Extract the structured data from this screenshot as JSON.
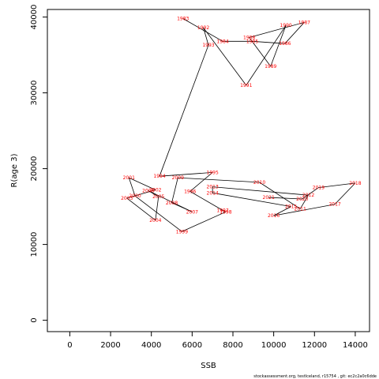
{
  "chart_data": {
    "type": "line",
    "title": "",
    "xlabel": "SSB",
    "ylabel": "R(age 3)",
    "xlim": [
      -1100,
      14700
    ],
    "ylim": [
      -1500,
      41000
    ],
    "xticks": [
      "0",
      "2000",
      "4000",
      "6000",
      "8000",
      "10000",
      "12000",
      "14000"
    ],
    "yticks": [
      "0",
      "10000",
      "20000",
      "30000",
      "40000"
    ],
    "grid": false,
    "line_color": "#000000",
    "label_color": "#ff0000",
    "footnote": "stockassessment.org, testIceland, r15754 ,  git: ec2c2a0c6dde",
    "series": [
      {
        "points": [
          {
            "label": "1983",
            "x": 5550,
            "y": 39800
          },
          {
            "label": "1984",
            "x": 7500,
            "y": 36800
          },
          {
            "label": "1985",
            "x": 8950,
            "y": 36800
          },
          {
            "label": "1986",
            "x": 10550,
            "y": 36500
          },
          {
            "label": "1987",
            "x": 11500,
            "y": 39300
          },
          {
            "label": "1988",
            "x": 8800,
            "y": 37300
          },
          {
            "label": "1989",
            "x": 9850,
            "y": 33500
          },
          {
            "label": "1990",
            "x": 10600,
            "y": 38900
          },
          {
            "label": "1991",
            "x": 8650,
            "y": 31000
          },
          {
            "label": "1992",
            "x": 6550,
            "y": 38600
          },
          {
            "label": "1993",
            "x": 6800,
            "y": 36300
          },
          {
            "label": "1994",
            "x": 4400,
            "y": 19000
          },
          {
            "label": "1995",
            "x": 7000,
            "y": 19500
          },
          {
            "label": "1996",
            "x": 5900,
            "y": 17000
          },
          {
            "label": "1997",
            "x": 7500,
            "y": 14500
          },
          {
            "label": "1998",
            "x": 7650,
            "y": 14300
          },
          {
            "label": "1999",
            "x": 5500,
            "y": 11700
          },
          {
            "label": "2000",
            "x": 3200,
            "y": 16400
          },
          {
            "label": "2001",
            "x": 2900,
            "y": 18800
          },
          {
            "label": "2002",
            "x": 4200,
            "y": 17200
          },
          {
            "label": "2003",
            "x": 2800,
            "y": 16100
          },
          {
            "label": "2004",
            "x": 4200,
            "y": 13200
          },
          {
            "label": "2005",
            "x": 4350,
            "y": 16300
          },
          {
            "label": "2006",
            "x": 3850,
            "y": 17100
          },
          {
            "label": "2007",
            "x": 6000,
            "y": 14300
          },
          {
            "label": "2008",
            "x": 5000,
            "y": 15500
          },
          {
            "label": "2009",
            "x": 5300,
            "y": 18800
          },
          {
            "label": "2010",
            "x": 9300,
            "y": 18200
          },
          {
            "label": "2011",
            "x": 11300,
            "y": 14700
          },
          {
            "label": "2012",
            "x": 11700,
            "y": 16500
          },
          {
            "label": "2013",
            "x": 7000,
            "y": 17600
          },
          {
            "label": "2014",
            "x": 7000,
            "y": 16800
          },
          {
            "label": "2015",
            "x": 10850,
            "y": 15000
          },
          {
            "label": "2016",
            "x": 10000,
            "y": 13800
          },
          {
            "label": "2017",
            "x": 13000,
            "y": 15300
          },
          {
            "label": "2018",
            "x": 14000,
            "y": 18100
          },
          {
            "label": "2019",
            "x": 12200,
            "y": 17500
          },
          {
            "label": "2020",
            "x": 11400,
            "y": 16000
          },
          {
            "label": "2021",
            "x": 9750,
            "y": 16200
          }
        ]
      }
    ]
  }
}
